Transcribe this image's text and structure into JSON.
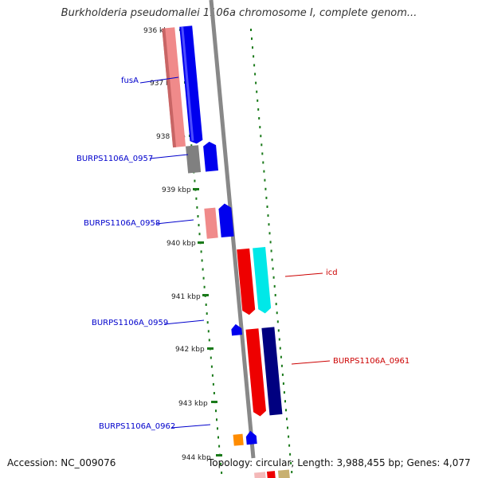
{
  "title": "Burkholderia pseudomallei 1106a chromosome I, complete genom...",
  "footer": {
    "accession": "Accession: NC_009076",
    "stats": "Topology: circular; Length: 3,988,455 bp; Genes: 4,077"
  },
  "colors": {
    "backbone": "#888888",
    "tick": "#1a7a1a",
    "forward_label": "#0000cc",
    "reverse_label": "#cc0000"
  },
  "ticks": [
    "936 kbp",
    "937 kbp",
    "938 kbp",
    "939 kbp",
    "940 kbp",
    "941 kbp",
    "942 kbp",
    "943 kbp",
    "944 kbp"
  ],
  "labels": [
    {
      "text": "fusA",
      "color": "#0000cc"
    },
    {
      "text": "BURPS1106A_0957",
      "color": "#0000cc"
    },
    {
      "text": "BURPS1106A_0958",
      "color": "#0000cc"
    },
    {
      "text": "icd",
      "color": "#cc0000"
    },
    {
      "text": "BURPS1106A_0959",
      "color": "#0000cc"
    },
    {
      "text": "BURPS1106A_0961",
      "color": "#cc0000"
    },
    {
      "text": "BURPS1106A_0962",
      "color": "#0000cc"
    }
  ]
}
